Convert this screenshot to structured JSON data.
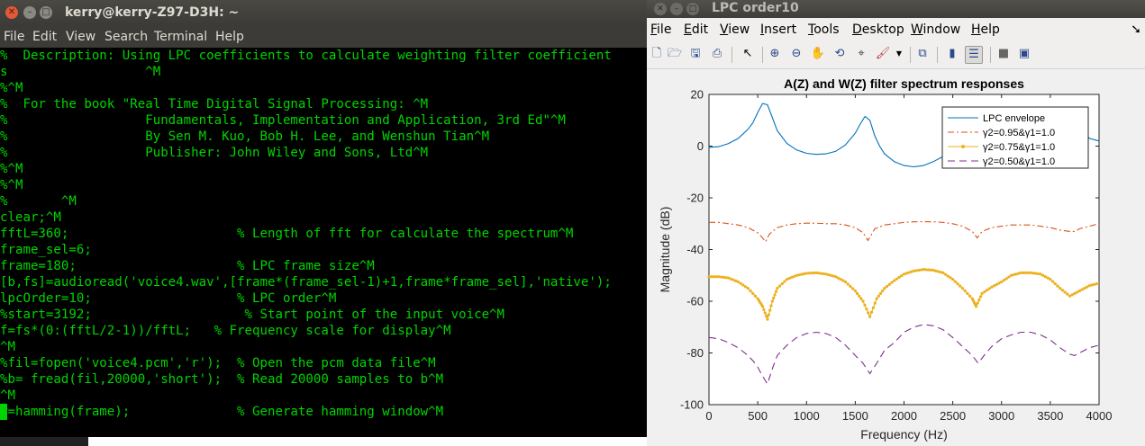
{
  "terminal": {
    "title": "kerry@kerry-Z97-D3H: ~",
    "close_glyph": "✕",
    "minimize_glyph": "–",
    "maximize_glyph": "□",
    "menu": [
      "File",
      "Edit",
      "View",
      "Search",
      "Terminal",
      "Help"
    ],
    "lines": [
      "%  Description: Using LPC coefficients to calculate weighting filter coefficient",
      "s                  ^M",
      "%^M",
      "%  For the book \"Real Time Digital Signal Processing: ^M",
      "%                  Fundamentals, Implementation and Application, 3rd Ed\"^M",
      "%                  By Sen M. Kuo, Bob H. Lee, and Wenshun Tian^M",
      "%                  Publisher: John Wiley and Sons, Ltd^M",
      "%^M",
      "%^M",
      "%       ^M",
      "clear;^M",
      "fftL=360;                      % Length of fft for calculate the spectrum^M",
      "frame_sel=6;",
      "frame=180;                     % LPC frame size^M",
      "[b,fs]=audioread('voice4.wav',[frame*(frame_sel-1)+1,frame*frame_sel],'native');",
      "lpcOrder=10;                   % LPC order^M",
      "%start=3192;                    % Start point of the input voice^M",
      "f=fs*(0:(fftL/2-1))/fftL;   % Frequency scale for display^M",
      "^M",
      "%fil=fopen('voice4.pcm','r');  % Open the pcm data file^M",
      "%b= fread(fil,20000,'short');  % Read 20000 samples to b^M",
      "^M",
      "w=hamming(frame);              % Generate hamming window^M"
    ]
  },
  "figure": {
    "title": "LPC order10",
    "close_glyph": "✕",
    "minimize_glyph": "–",
    "maximize_glyph": "□",
    "menu": [
      {
        "label": "File",
        "u": "F"
      },
      {
        "label": "Edit",
        "u": "E"
      },
      {
        "label": "View",
        "u": "V"
      },
      {
        "label": "Insert",
        "u": "I"
      },
      {
        "label": "Tools",
        "u": "T"
      },
      {
        "label": "Desktop",
        "u": "D"
      },
      {
        "label": "Window",
        "u": "W"
      },
      {
        "label": "Help",
        "u": "H"
      }
    ],
    "toolbar": [
      "new-figure-icon",
      "open-file-icon",
      "save-icon",
      "print-icon",
      "pointer-icon",
      "zoom-in-icon",
      "zoom-out-icon",
      "pan-hand-icon",
      "rotate-3d-icon",
      "data-cursor-icon",
      "brush-icon",
      "link-plot-icon",
      "colorbar-icon",
      "legend-icon",
      "hide-plot-tools-icon",
      "show-plot-tools-icon"
    ]
  },
  "chart_data": {
    "type": "line",
    "title": "A(Z) and W(Z) filter spectrum responses",
    "xlabel": "Frequency (Hz)",
    "ylabel": "Magnitude (dB)",
    "xlim": [
      0,
      4000
    ],
    "ylim": [
      -100,
      20
    ],
    "xticks": [
      0,
      500,
      1000,
      1500,
      2000,
      2500,
      3000,
      3500,
      4000
    ],
    "yticks": [
      20,
      0,
      -20,
      -40,
      -60,
      -80,
      -100
    ],
    "grid": false,
    "legend_position": "top-right",
    "series": [
      {
        "name": "LPC envelope",
        "style": "solid",
        "color": "#0072bd",
        "x": [
          0,
          100,
          200,
          300,
          400,
          450,
          500,
          550,
          600,
          650,
          700,
          800,
          900,
          1000,
          1100,
          1200,
          1300,
          1400,
          1500,
          1550,
          1600,
          1650,
          1700,
          1750,
          1800,
          1900,
          2000,
          2100,
          2200,
          2300,
          2400,
          2500,
          2600,
          2700,
          2800,
          2900,
          3000,
          3100,
          3200,
          3300,
          3400,
          3500,
          3600,
          3700,
          3800,
          3900,
          4000
        ],
        "y": [
          -0.5,
          -0.2,
          1,
          3,
          6.5,
          9,
          13,
          16.5,
          16,
          11,
          6,
          1,
          -1.5,
          -2.8,
          -3.2,
          -3,
          -2,
          0.5,
          5,
          8.5,
          11.5,
          10,
          4,
          0,
          -3,
          -6,
          -7.5,
          -8,
          -7.5,
          -6,
          -4,
          -1.5,
          1,
          2,
          1.5,
          1,
          0,
          -0.5,
          0,
          0.8,
          2.5,
          5,
          8,
          10.5,
          8,
          3,
          2
        ]
      },
      {
        "name": "γ2=0.95&γ1=1.0",
        "style": "dashdot",
        "color": "#d95319",
        "x": [
          0,
          100,
          200,
          300,
          400,
          500,
          550,
          580,
          620,
          700,
          800,
          900,
          1000,
          1100,
          1200,
          1300,
          1400,
          1500,
          1580,
          1630,
          1700,
          1800,
          1900,
          2000,
          2100,
          2200,
          2300,
          2400,
          2500,
          2600,
          2700,
          2750,
          2800,
          2900,
          3000,
          3100,
          3200,
          3300,
          3400,
          3500,
          3600,
          3700,
          3750,
          3800,
          3900,
          4000
        ],
        "y": [
          -29.5,
          -29.5,
          -30,
          -30.5,
          -31.5,
          -33.5,
          -35.5,
          -37,
          -34,
          -31.5,
          -30.5,
          -30,
          -29.8,
          -29.8,
          -30,
          -30,
          -30.5,
          -31.5,
          -33.5,
          -36.5,
          -32,
          -30.5,
          -30,
          -29.5,
          -29.3,
          -29.2,
          -29.3,
          -29.5,
          -30,
          -31,
          -33,
          -35.5,
          -33,
          -31.5,
          -31,
          -30.5,
          -30.5,
          -30.5,
          -31,
          -31.5,
          -32.5,
          -33,
          -33,
          -32,
          -31,
          -30
        ]
      },
      {
        "name": "γ2=0.75&γ1=1.0",
        "style": "dots",
        "color": "#edb120",
        "x": [
          0,
          100,
          200,
          300,
          400,
          500,
          550,
          600,
          650,
          700,
          800,
          900,
          1000,
          1100,
          1200,
          1300,
          1400,
          1500,
          1580,
          1650,
          1720,
          1800,
          1900,
          2000,
          2100,
          2200,
          2300,
          2400,
          2500,
          2600,
          2700,
          2740,
          2800,
          2900,
          3000,
          3100,
          3200,
          3300,
          3400,
          3500,
          3600,
          3700,
          3800,
          3900,
          4000
        ],
        "y": [
          -50.5,
          -50.5,
          -51,
          -52.5,
          -55,
          -59,
          -62,
          -67,
          -60,
          -55,
          -51.5,
          -50,
          -49.2,
          -49,
          -49.5,
          -50.5,
          -52.5,
          -56,
          -60,
          -66,
          -59,
          -55,
          -52,
          -49.5,
          -48.3,
          -47.7,
          -48,
          -49,
          -51.5,
          -55,
          -59,
          -62,
          -57,
          -54.5,
          -52.5,
          -50,
          -49,
          -49,
          -49.5,
          -51.5,
          -55,
          -58,
          -56,
          -54,
          -53
        ]
      },
      {
        "name": "γ2=0.50&γ1=1.0",
        "style": "dashed",
        "color": "#7e2f8e",
        "x": [
          0,
          100,
          200,
          300,
          400,
          450,
          500,
          550,
          600,
          650,
          700,
          800,
          900,
          1000,
          1100,
          1200,
          1300,
          1400,
          1500,
          1580,
          1650,
          1720,
          1800,
          1900,
          2000,
          2100,
          2200,
          2300,
          2400,
          2500,
          2600,
          2700,
          2760,
          2820,
          2900,
          3000,
          3100,
          3200,
          3300,
          3400,
          3500,
          3600,
          3700,
          3750,
          3800,
          3900,
          4000
        ],
        "y": [
          -74,
          -74.5,
          -76,
          -78,
          -81,
          -83,
          -85.5,
          -89,
          -92,
          -86,
          -81,
          -77,
          -74,
          -72.5,
          -72,
          -72.5,
          -74,
          -77,
          -81,
          -84,
          -88,
          -84,
          -79,
          -76,
          -72,
          -70,
          -69,
          -69.5,
          -71,
          -74,
          -77.5,
          -81,
          -84,
          -81,
          -77.5,
          -74.5,
          -73,
          -72,
          -72,
          -73,
          -75,
          -78,
          -80.5,
          -81,
          -80,
          -78,
          -77
        ]
      }
    ]
  }
}
